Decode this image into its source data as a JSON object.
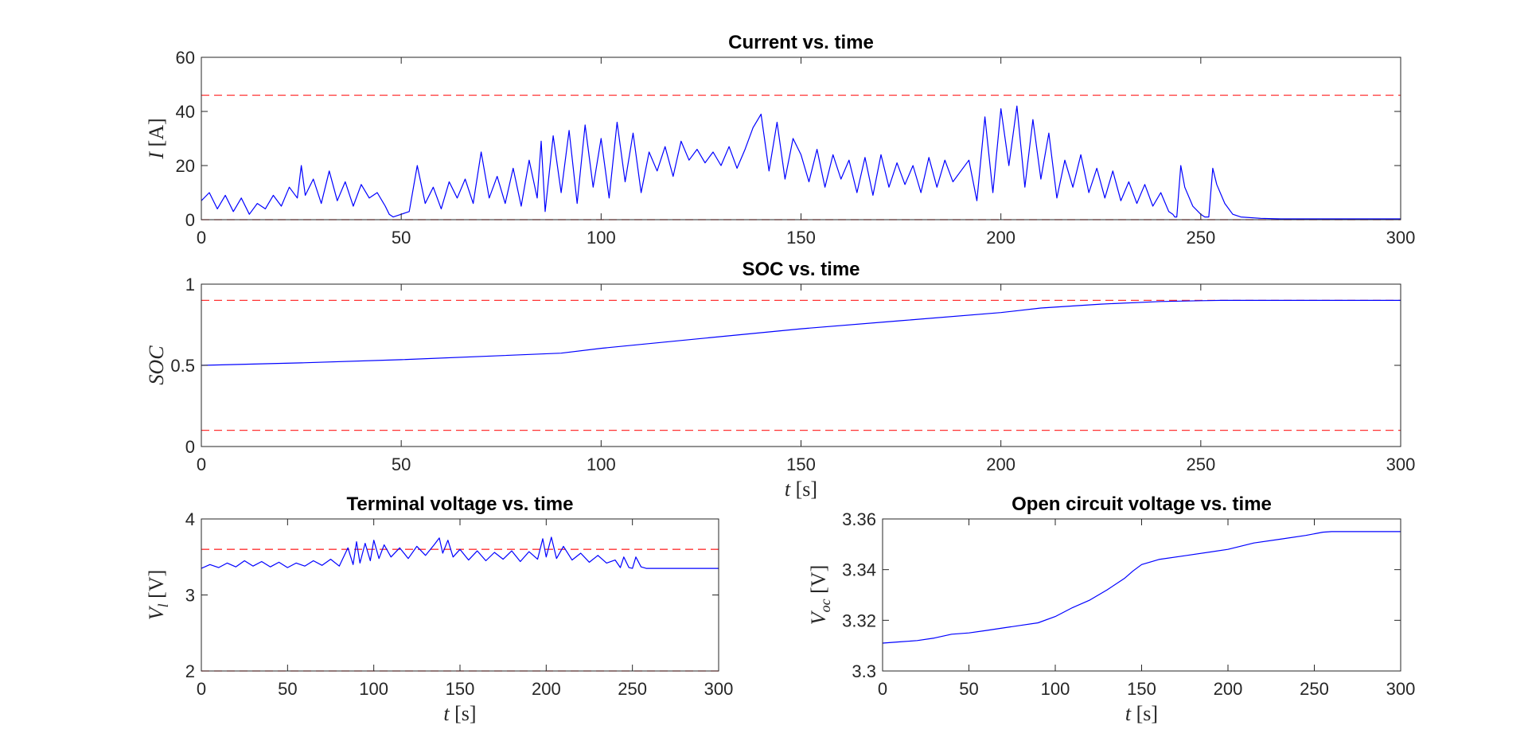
{
  "chart_data": [
    {
      "id": "current",
      "type": "line",
      "title": "Current vs. time",
      "ylabel_symbol": "I",
      "ylabel_unit": "[A]",
      "xlabel_symbol": "",
      "xlabel_unit": "",
      "xlim": [
        0,
        300
      ],
      "ylim": [
        0,
        60
      ],
      "xticks": [
        "0",
        "50",
        "100",
        "150",
        "200",
        "250",
        "300"
      ],
      "yticks": [
        "0",
        "20",
        "40",
        "60"
      ],
      "limits": [
        0,
        46
      ],
      "line_color": "#0000ff",
      "limit_color": "#ff0000",
      "series": [
        {
          "x": [
            0,
            2,
            4,
            6,
            8,
            10,
            12,
            14,
            16,
            18,
            20,
            22,
            24,
            25,
            26,
            28,
            30,
            32,
            34,
            36,
            38,
            40,
            42,
            44,
            46,
            47,
            48,
            50,
            52,
            54,
            56,
            58,
            60,
            62,
            64,
            66,
            68,
            70,
            72,
            74,
            76,
            78,
            80,
            82,
            84,
            85,
            86,
            88,
            90,
            92,
            94,
            96,
            98,
            100,
            102,
            104,
            106,
            108,
            110,
            112,
            114,
            116,
            118,
            120,
            122,
            124,
            126,
            128,
            130,
            132,
            134,
            136,
            138,
            140,
            142,
            144,
            146,
            148,
            150,
            152,
            154,
            156,
            158,
            160,
            162,
            164,
            166,
            168,
            170,
            172,
            174,
            176,
            178,
            180,
            182,
            184,
            186,
            188,
            190,
            192,
            194,
            196,
            198,
            200,
            202,
            204,
            206,
            208,
            210,
            212,
            214,
            216,
            218,
            220,
            222,
            224,
            226,
            228,
            230,
            232,
            234,
            236,
            238,
            240,
            242,
            243,
            243.5,
            244,
            245,
            246,
            248,
            250,
            251,
            252,
            253,
            254,
            256,
            258,
            260,
            265,
            270,
            280,
            290,
            300
          ],
          "y": [
            7,
            10,
            4,
            9,
            3,
            8,
            2,
            6,
            4,
            9,
            5,
            12,
            8,
            20,
            9,
            15,
            6,
            18,
            7,
            14,
            5,
            13,
            8,
            10,
            5,
            2,
            1,
            2,
            3,
            20,
            6,
            12,
            4,
            14,
            8,
            15,
            6,
            25,
            8,
            16,
            6,
            19,
            5,
            22,
            8,
            29,
            3,
            31,
            10,
            33,
            6,
            35,
            12,
            30,
            8,
            36,
            14,
            32,
            10,
            25,
            18,
            27,
            16,
            29,
            22,
            26,
            21,
            25,
            20,
            27,
            19,
            26,
            34,
            39,
            18,
            36,
            15,
            30,
            24,
            14,
            26,
            12,
            24,
            15,
            22,
            10,
            23,
            9,
            24,
            12,
            21,
            13,
            20,
            10,
            23,
            12,
            22,
            14,
            18,
            22,
            7,
            38,
            10,
            41,
            20,
            42,
            12,
            37,
            15,
            32,
            8,
            22,
            12,
            24,
            10,
            19,
            8,
            18,
            7,
            14,
            6,
            13,
            5,
            10,
            3,
            2,
            1,
            1,
            20,
            12,
            5,
            2,
            1,
            1,
            19,
            13,
            6,
            2,
            1,
            0.5,
            0.3,
            0.3,
            0.3,
            0.3
          ]
        }
      ]
    },
    {
      "id": "soc",
      "type": "line",
      "title": "SOC vs. time",
      "ylabel_symbol": "SOC",
      "ylabel_unit": "",
      "xlabel_symbol": "t",
      "xlabel_unit": "[s]",
      "xlim": [
        0,
        300
      ],
      "ylim": [
        0,
        1
      ],
      "xticks": [
        "0",
        "50",
        "100",
        "150",
        "200",
        "250",
        "300"
      ],
      "yticks": [
        "0",
        "0.5",
        "1"
      ],
      "limits": [
        0.1,
        0.9
      ],
      "line_color": "#0000ff",
      "limit_color": "#ff0000",
      "series": [
        {
          "x": [
            0,
            25,
            50,
            75,
            90,
            100,
            125,
            150,
            175,
            200,
            210,
            225,
            240,
            250,
            255,
            260,
            300
          ],
          "y": [
            0.5,
            0.515,
            0.535,
            0.56,
            0.575,
            0.605,
            0.665,
            0.725,
            0.775,
            0.825,
            0.853,
            0.877,
            0.893,
            0.898,
            0.9,
            0.9,
            0.9
          ]
        }
      ]
    },
    {
      "id": "terminal-voltage",
      "type": "line",
      "title": "Terminal voltage vs. time",
      "ylabel_symbol": "V_l",
      "ylabel_unit": "[V]",
      "xlabel_symbol": "t",
      "xlabel_unit": "[s]",
      "xlim": [
        0,
        300
      ],
      "ylim": [
        2,
        4
      ],
      "xticks": [
        "0",
        "50",
        "100",
        "150",
        "200",
        "250",
        "300"
      ],
      "yticks": [
        "2",
        "3",
        "4"
      ],
      "limits": [
        2,
        3.6
      ],
      "line_color": "#0000ff",
      "limit_color": "#ff0000",
      "series": [
        {
          "x": [
            0,
            5,
            10,
            15,
            20,
            25,
            30,
            35,
            40,
            45,
            50,
            55,
            60,
            65,
            70,
            75,
            80,
            85,
            88,
            90,
            92,
            95,
            98,
            100,
            103,
            106,
            110,
            115,
            120,
            125,
            130,
            135,
            138,
            140,
            143,
            146,
            150,
            155,
            160,
            165,
            170,
            175,
            180,
            185,
            190,
            195,
            198,
            200,
            203,
            206,
            210,
            215,
            220,
            225,
            230,
            235,
            240,
            243,
            245,
            248,
            250,
            252,
            255,
            258,
            260,
            300
          ],
          "y": [
            3.35,
            3.4,
            3.36,
            3.42,
            3.37,
            3.45,
            3.38,
            3.44,
            3.37,
            3.43,
            3.36,
            3.42,
            3.38,
            3.45,
            3.39,
            3.47,
            3.38,
            3.62,
            3.4,
            3.7,
            3.42,
            3.68,
            3.45,
            3.72,
            3.48,
            3.66,
            3.5,
            3.62,
            3.48,
            3.64,
            3.52,
            3.66,
            3.75,
            3.55,
            3.72,
            3.5,
            3.6,
            3.46,
            3.58,
            3.45,
            3.56,
            3.47,
            3.58,
            3.44,
            3.57,
            3.47,
            3.74,
            3.5,
            3.76,
            3.48,
            3.64,
            3.46,
            3.55,
            3.43,
            3.52,
            3.42,
            3.46,
            3.36,
            3.5,
            3.36,
            3.35,
            3.5,
            3.37,
            3.35,
            3.35,
            3.35
          ]
        }
      ]
    },
    {
      "id": "ocv",
      "type": "line",
      "title": "Open circuit voltage vs. time",
      "ylabel_symbol": "V_oc",
      "ylabel_unit": "[V]",
      "xlabel_symbol": "t",
      "xlabel_unit": "[s]",
      "xlim": [
        0,
        300
      ],
      "ylim": [
        3.3,
        3.36
      ],
      "xticks": [
        "0",
        "50",
        "100",
        "150",
        "200",
        "250",
        "300"
      ],
      "yticks": [
        "3.3",
        "3.32",
        "3.34",
        "3.36"
      ],
      "limits": [],
      "line_color": "#0000ff",
      "limit_color": "#ff0000",
      "series": [
        {
          "x": [
            0,
            10,
            20,
            30,
            40,
            50,
            60,
            70,
            80,
            90,
            100,
            110,
            120,
            130,
            140,
            145,
            150,
            160,
            175,
            200,
            215,
            230,
            245,
            255,
            260,
            300
          ],
          "y": [
            3.311,
            3.3115,
            3.312,
            3.313,
            3.3145,
            3.315,
            3.316,
            3.317,
            3.318,
            3.319,
            3.3215,
            3.325,
            3.328,
            3.332,
            3.3365,
            3.3395,
            3.342,
            3.344,
            3.3455,
            3.348,
            3.3505,
            3.352,
            3.3535,
            3.3548,
            3.355,
            3.355
          ]
        }
      ]
    }
  ]
}
